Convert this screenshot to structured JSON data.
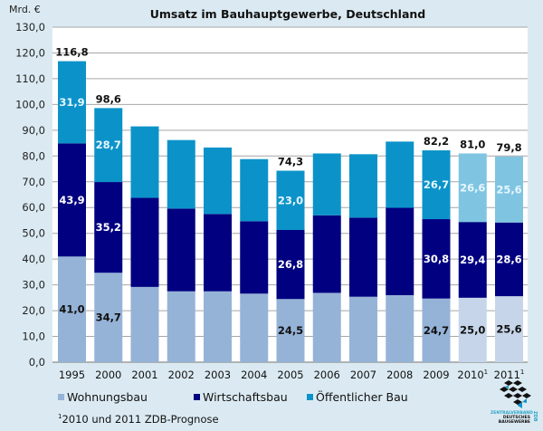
{
  "chart_data": {
    "type": "bar",
    "stacked": true,
    "title": "Umsatz im Bauhauptgewerbe, Deutschland",
    "unit_label": "Mrd. €",
    "xlabel": "",
    "ylabel": "Mrd. €",
    "ylim": [
      0,
      130
    ],
    "ytick_step": 10,
    "ytick_labels": [
      "0,0",
      "10,0",
      "20,0",
      "30,0",
      "40,0",
      "50,0",
      "60,0",
      "70,0",
      "80,0",
      "90,0",
      "100,0",
      "110,0",
      "120,0",
      "130,0"
    ],
    "grid": true,
    "legend_position": "bottom",
    "categories": [
      "1995",
      "2000",
      "2001",
      "2002",
      "2003",
      "2004",
      "2005",
      "2006",
      "2007",
      "2008",
      "2009",
      "2010",
      "2011"
    ],
    "category_superscripts": [
      "",
      "",
      "",
      "",
      "",
      "",
      "",
      "",
      "",
      "",
      "",
      "1",
      "1"
    ],
    "forecast": [
      false,
      false,
      false,
      false,
      false,
      false,
      false,
      false,
      false,
      false,
      false,
      true,
      true
    ],
    "series": [
      {
        "name": "Wohnungsbau",
        "color": "#95b3d7",
        "forecast_color": "#c6d5e9",
        "values": [
          41.0,
          34.7,
          29.2,
          27.5,
          27.5,
          26.6,
          24.5,
          26.9,
          25.4,
          26.0,
          24.7,
          25.0,
          25.6
        ],
        "labels": [
          "41,0",
          "34,7",
          "",
          "",
          "",
          "",
          "24,5",
          "",
          "",
          "",
          "24,7",
          "25,0",
          "25,6"
        ],
        "label_color": "#111111"
      },
      {
        "name": "Wirtschaftsbau",
        "color": "#000080",
        "forecast_color": "#000080",
        "values": [
          43.9,
          35.2,
          34.6,
          32.1,
          30.0,
          28.1,
          26.8,
          30.1,
          30.7,
          33.9,
          30.8,
          29.4,
          28.6
        ],
        "labels": [
          "43,9",
          "35,2",
          "",
          "",
          "",
          "",
          "26,8",
          "",
          "",
          "",
          "30,8",
          "29,4",
          "28,6"
        ],
        "label_color": "#ffffff"
      },
      {
        "name": "Öffentlicher Bau",
        "color": "#0b93c9",
        "forecast_color": "#7fc5e2",
        "values": [
          31.9,
          28.7,
          27.7,
          26.6,
          25.8,
          24.1,
          23.0,
          24.0,
          24.6,
          25.7,
          26.7,
          26.6,
          25.6
        ],
        "labels": [
          "31,9",
          "28,7",
          "",
          "",
          "",
          "",
          "23,0",
          "",
          "",
          "",
          "26,7",
          "26,6",
          "25,6"
        ],
        "label_color": "#e8f6ff"
      }
    ],
    "totals": [
      116.8,
      98.6,
      91.5,
      86.2,
      83.3,
      78.8,
      74.3,
      81.0,
      80.7,
      85.6,
      82.2,
      81.0,
      79.8
    ],
    "total_labels": [
      "116,8",
      "98,6",
      "",
      "",
      "",
      "",
      "74,3",
      "",
      "",
      "",
      "82,2",
      "81,0",
      "79,8"
    ]
  },
  "legend": [
    {
      "label": "Wohnungsbau",
      "color": "#95b3d7"
    },
    {
      "label": "Wirtschaftsbau",
      "color": "#000080"
    },
    {
      "label": "Öffentlicher Bau",
      "color": "#0b93c9"
    }
  ],
  "footnote": {
    "marker": "1",
    "text": "2010 und 2011 ZDB-Prognose"
  },
  "logo": {
    "line1": "ZENTRALVERBAND",
    "line2": "DEUTSCHES",
    "line3": "BAUGEWERBE",
    "side": "ZDB"
  }
}
